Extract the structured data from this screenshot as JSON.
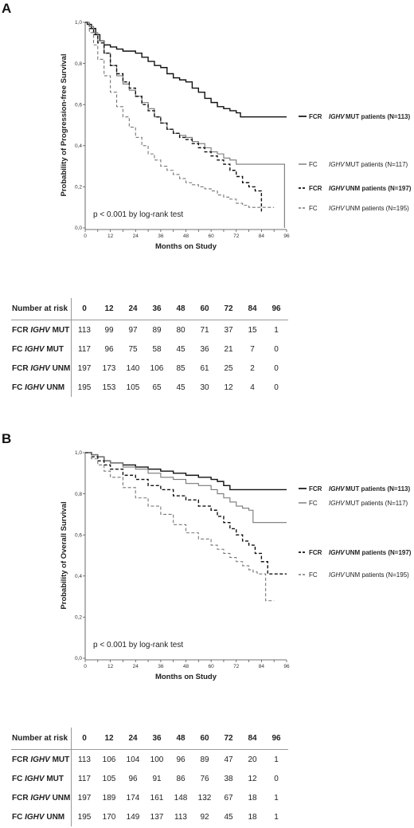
{
  "chart_data": [
    {
      "panel": "A",
      "type": "line",
      "ylabel": "Probability of Progression-free Survival",
      "xlabel": "Months on Study",
      "xlim": [
        0,
        96
      ],
      "ylim": [
        0,
        1
      ],
      "xticks": [
        0,
        6,
        12,
        18,
        24,
        30,
        36,
        42,
        48,
        54,
        60,
        66,
        72,
        78,
        84,
        90,
        96
      ],
      "xtick_labels": [
        "0",
        "",
        "12",
        "",
        "24",
        "",
        "36",
        "",
        "48",
        "",
        "60",
        "",
        "72",
        "",
        "84",
        "",
        "96"
      ],
      "yticks": [
        0,
        0.2,
        0.4,
        0.6,
        0.8,
        1.0
      ],
      "ytick_labels": [
        "0,0",
        "0,2",
        "0,4",
        "0,6",
        "0,8",
        "1,0"
      ],
      "annotation": "p < 0.001  by log-rank test",
      "series": [
        {
          "name": "FCR  IGHV MUT patients (N=113)",
          "arm": "FCR",
          "rest": "MUT patients (N=113)",
          "color": "#111111",
          "dash": "solid",
          "width": 1.4,
          "x": [
            0,
            1,
            3,
            5,
            7,
            9,
            12,
            15,
            18,
            21,
            24,
            27,
            30,
            33,
            36,
            39,
            42,
            45,
            48,
            51,
            54,
            57,
            60,
            63,
            66,
            69,
            72,
            74,
            78,
            84,
            90,
            96
          ],
          "y": [
            1.0,
            0.99,
            0.97,
            0.94,
            0.91,
            0.89,
            0.88,
            0.87,
            0.86,
            0.86,
            0.85,
            0.83,
            0.81,
            0.79,
            0.78,
            0.75,
            0.73,
            0.72,
            0.71,
            0.68,
            0.66,
            0.63,
            0.61,
            0.59,
            0.58,
            0.57,
            0.56,
            0.54,
            0.54,
            0.54,
            0.54,
            0.54
          ]
        },
        {
          "name": "FC  IGHV MUT patients (N=117)",
          "arm": "FC",
          "rest": "MUT patients (N=117)",
          "color": "#777777",
          "dash": "solid",
          "width": 1.1,
          "x": [
            0,
            2,
            4,
            6,
            9,
            12,
            15,
            18,
            21,
            24,
            27,
            30,
            33,
            36,
            39,
            42,
            45,
            48,
            51,
            54,
            57,
            60,
            63,
            66,
            69,
            72,
            72,
            80,
            90,
            95,
            95
          ],
          "y": [
            1.0,
            0.98,
            0.95,
            0.91,
            0.85,
            0.79,
            0.74,
            0.7,
            0.67,
            0.64,
            0.61,
            0.58,
            0.54,
            0.51,
            0.48,
            0.46,
            0.45,
            0.44,
            0.42,
            0.41,
            0.39,
            0.37,
            0.36,
            0.34,
            0.33,
            0.33,
            0.31,
            0.31,
            0.31,
            0.31,
            0.0
          ]
        },
        {
          "name": "FCR  IGHV UNM patients (N=197)",
          "arm": "FCR",
          "rest": "UNM patients (N=197)",
          "color": "#111111",
          "dash": "4,2.5",
          "width": 1.4,
          "x": [
            0,
            2,
            4,
            6,
            9,
            12,
            15,
            18,
            21,
            24,
            27,
            30,
            33,
            36,
            39,
            42,
            45,
            48,
            51,
            54,
            57,
            60,
            63,
            66,
            69,
            72,
            75,
            78,
            81,
            84,
            84
          ],
          "y": [
            1.0,
            0.97,
            0.94,
            0.9,
            0.85,
            0.79,
            0.75,
            0.71,
            0.68,
            0.64,
            0.6,
            0.57,
            0.54,
            0.51,
            0.48,
            0.46,
            0.44,
            0.43,
            0.41,
            0.39,
            0.37,
            0.35,
            0.33,
            0.31,
            0.28,
            0.25,
            0.22,
            0.2,
            0.18,
            0.16,
            0.08
          ]
        },
        {
          "name": "FC  IGHV UNM patients (N=195)",
          "arm": "FC",
          "rest": "UNM patients (N=195)",
          "color": "#777777",
          "dash": "4,2.5",
          "width": 1.1,
          "x": [
            0,
            2,
            4,
            6,
            9,
            12,
            15,
            18,
            21,
            24,
            27,
            30,
            33,
            36,
            39,
            42,
            45,
            48,
            51,
            54,
            57,
            60,
            63,
            66,
            69,
            72,
            75,
            78,
            81,
            84,
            87,
            90
          ],
          "y": [
            1.0,
            0.95,
            0.89,
            0.82,
            0.74,
            0.66,
            0.59,
            0.54,
            0.49,
            0.44,
            0.4,
            0.36,
            0.33,
            0.3,
            0.28,
            0.26,
            0.24,
            0.22,
            0.21,
            0.2,
            0.19,
            0.18,
            0.16,
            0.15,
            0.14,
            0.12,
            0.11,
            0.1,
            0.1,
            0.1,
            0.1,
            0.1
          ]
        }
      ]
    },
    {
      "panel": "B",
      "type": "line",
      "ylabel": "Probability of Overall Survival",
      "xlabel": "Months on Study",
      "xlim": [
        0,
        96
      ],
      "ylim": [
        0,
        1
      ],
      "xticks": [
        0,
        6,
        12,
        18,
        24,
        30,
        36,
        42,
        48,
        54,
        60,
        66,
        72,
        78,
        84,
        90,
        96
      ],
      "xtick_labels": [
        "0",
        "",
        "12",
        "",
        "24",
        "",
        "36",
        "",
        "48",
        "",
        "60",
        "",
        "72",
        "",
        "84",
        "",
        "96"
      ],
      "yticks": [
        0,
        0.2,
        0.4,
        0.6,
        0.8,
        1.0
      ],
      "ytick_labels": [
        "0,0",
        "0,2",
        "0,4",
        "0,6",
        "0,8",
        "1,0"
      ],
      "annotation": "p < 0.001  by log-rank test",
      "series": [
        {
          "name": "FCR  IGHV MUT patients (N=113)",
          "arm": "FCR",
          "rest": "MUT patients (N=113)",
          "color": "#111111",
          "dash": "solid",
          "width": 1.4,
          "x": [
            0,
            3,
            6,
            9,
            12,
            18,
            24,
            30,
            36,
            42,
            48,
            54,
            60,
            63,
            66,
            69,
            72,
            78,
            84,
            90,
            96
          ],
          "y": [
            1.0,
            0.99,
            0.98,
            0.96,
            0.95,
            0.94,
            0.93,
            0.92,
            0.91,
            0.9,
            0.89,
            0.88,
            0.87,
            0.86,
            0.84,
            0.82,
            0.82,
            0.82,
            0.82,
            0.82,
            0.82
          ]
        },
        {
          "name": "FC  IGHV MUT patients (N=117)",
          "arm": "FC",
          "rest": "MUT patients (N=117)",
          "color": "#777777",
          "dash": "solid",
          "width": 1.1,
          "x": [
            0,
            3,
            6,
            9,
            12,
            18,
            24,
            30,
            36,
            42,
            48,
            54,
            60,
            63,
            66,
            69,
            72,
            75,
            78,
            80,
            80,
            90,
            96
          ],
          "y": [
            1.0,
            0.99,
            0.98,
            0.96,
            0.95,
            0.93,
            0.92,
            0.9,
            0.88,
            0.87,
            0.85,
            0.84,
            0.82,
            0.8,
            0.78,
            0.76,
            0.74,
            0.73,
            0.72,
            0.72,
            0.66,
            0.66,
            0.66
          ]
        },
        {
          "name": "FCR  IGHV UNM patients (N=197)",
          "arm": "FCR",
          "rest": "UNM patients (N=197)",
          "color": "#111111",
          "dash": "4,2.5",
          "width": 1.4,
          "x": [
            0,
            3,
            6,
            9,
            12,
            18,
            24,
            30,
            36,
            42,
            48,
            54,
            60,
            63,
            66,
            69,
            72,
            75,
            78,
            81,
            84,
            87,
            90,
            96
          ],
          "y": [
            1.0,
            0.98,
            0.96,
            0.94,
            0.92,
            0.89,
            0.87,
            0.84,
            0.82,
            0.79,
            0.77,
            0.74,
            0.72,
            0.69,
            0.66,
            0.63,
            0.6,
            0.57,
            0.55,
            0.51,
            0.47,
            0.41,
            0.41,
            0.41
          ]
        },
        {
          "name": "FC  IGHV UNM patients (N=195)",
          "arm": "FC",
          "rest": "UNM patients (N=195)",
          "color": "#777777",
          "dash": "4,2.5",
          "width": 1.1,
          "x": [
            0,
            3,
            6,
            9,
            12,
            18,
            24,
            30,
            36,
            42,
            48,
            54,
            60,
            63,
            66,
            69,
            72,
            75,
            78,
            80,
            82,
            84,
            86,
            86,
            90
          ],
          "y": [
            1.0,
            0.97,
            0.94,
            0.91,
            0.88,
            0.83,
            0.78,
            0.74,
            0.7,
            0.65,
            0.61,
            0.58,
            0.55,
            0.53,
            0.51,
            0.49,
            0.47,
            0.45,
            0.43,
            0.42,
            0.41,
            0.41,
            0.38,
            0.28,
            0.28
          ]
        }
      ]
    }
  ],
  "risk_tables": [
    {
      "header_label": "Number at risk",
      "timepoints": [
        "0",
        "12",
        "24",
        "36",
        "48",
        "60",
        "72",
        "84",
        "96"
      ],
      "rows": [
        {
          "arm": "FCR",
          "ighv": "IGHV",
          "status": "MUT",
          "values": [
            "113",
            "99",
            "97",
            "89",
            "80",
            "71",
            "37",
            "15",
            "1"
          ]
        },
        {
          "arm": "FC",
          "ighv": "IGHV",
          "status": "MUT",
          "values": [
            "117",
            "96",
            "75",
            "58",
            "45",
            "36",
            "21",
            "7",
            "0"
          ]
        },
        {
          "arm": "FCR",
          "ighv": "IGHV",
          "status": "UNM",
          "values": [
            "197",
            "173",
            "140",
            "106",
            "85",
            "61",
            "25",
            "2",
            "0"
          ]
        },
        {
          "arm": "FC",
          "ighv": "IGHV",
          "status": "UNM",
          "values": [
            "195",
            "153",
            "105",
            "65",
            "45",
            "30",
            "12",
            "4",
            "0"
          ]
        }
      ]
    },
    {
      "header_label": "Number at risk",
      "timepoints": [
        "0",
        "12",
        "24",
        "36",
        "48",
        "60",
        "72",
        "84",
        "96"
      ],
      "rows": [
        {
          "arm": "FCR",
          "ighv": "IGHV",
          "status": "MUT",
          "values": [
            "113",
            "106",
            "104",
            "100",
            "96",
            "89",
            "47",
            "20",
            "1"
          ]
        },
        {
          "arm": "FC",
          "ighv": "IGHV",
          "status": "MUT",
          "values": [
            "117",
            "105",
            "96",
            "91",
            "86",
            "76",
            "38",
            "12",
            "0"
          ]
        },
        {
          "arm": "FCR",
          "ighv": "IGHV",
          "status": "UNM",
          "values": [
            "197",
            "189",
            "174",
            "161",
            "148",
            "132",
            "67",
            "18",
            "1"
          ]
        },
        {
          "arm": "FC",
          "ighv": "IGHV",
          "status": "UNM",
          "values": [
            "195",
            "170",
            "149",
            "137",
            "113",
            "92",
            "45",
            "18",
            "1"
          ]
        }
      ]
    }
  ],
  "panels": {
    "a_label": "A",
    "b_label": "B"
  },
  "legend_gene": "IGHV"
}
